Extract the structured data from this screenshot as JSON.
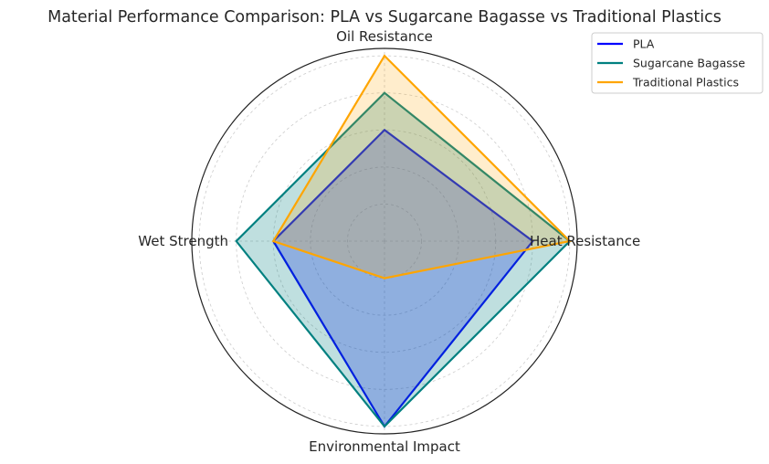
{
  "chart_data": {
    "type": "radar",
    "title": "Material Performance Comparison: PLA vs Sugarcane Bagasse vs Traditional Plastics",
    "categories": [
      "Oil Resistance",
      "Heat Resistance",
      "Environmental Impact",
      "Wet Strength"
    ],
    "rlim": [
      0,
      5.2
    ],
    "rgrid": [
      1,
      2,
      3,
      4,
      5
    ],
    "grid": true,
    "legend": "top-right",
    "series": [
      {
        "name": "PLA",
        "values": [
          3,
          4,
          5,
          3
        ],
        "color": "#0000ff"
      },
      {
        "name": "Sugarcane Bagasse",
        "values": [
          4,
          5,
          5,
          4
        ],
        "color": "#008080"
      },
      {
        "name": "Traditional Plastics",
        "values": [
          5,
          5,
          1,
          3
        ],
        "color": "#ffa500"
      }
    ]
  }
}
